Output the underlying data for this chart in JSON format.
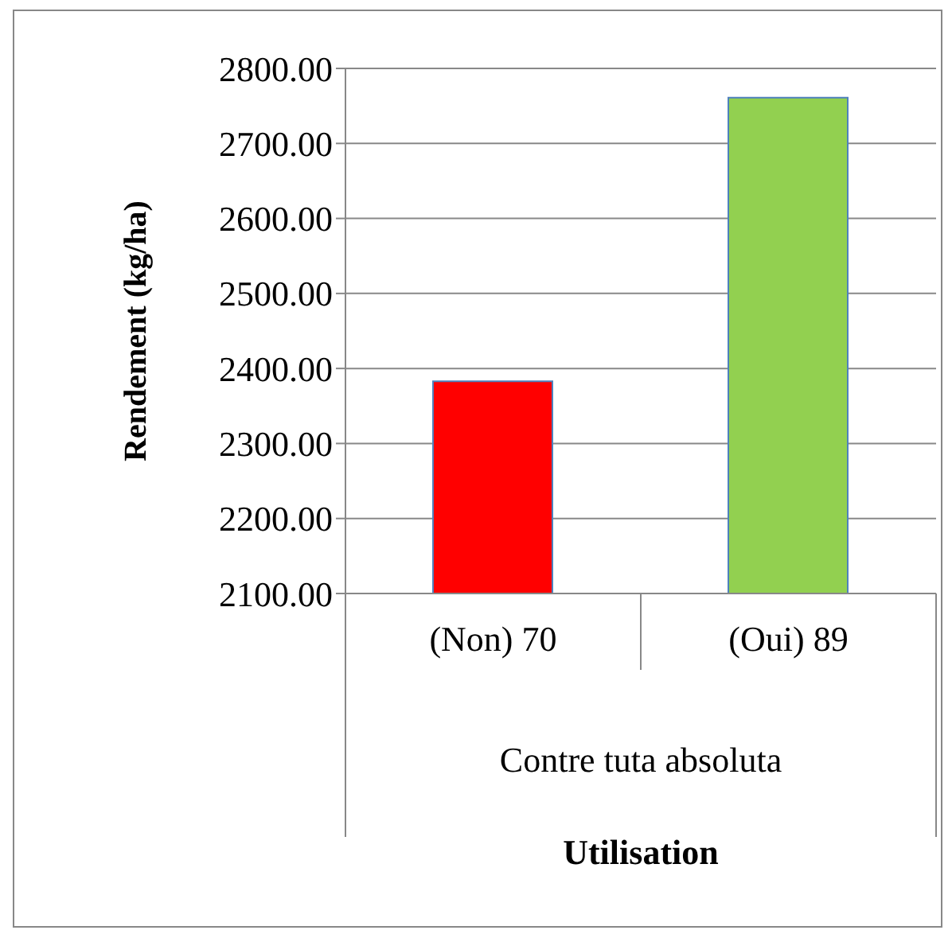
{
  "chart_data": {
    "type": "bar",
    "categories": [
      "(Non) 70",
      "(Oui) 89"
    ],
    "values": [
      2383,
      2761
    ],
    "colors": [
      "#ff0000",
      "#92d050"
    ],
    "ylim": [
      2100,
      2800
    ],
    "yticks": [
      {
        "value": 2100,
        "label": "2100.00"
      },
      {
        "value": 2200,
        "label": "2200.00"
      },
      {
        "value": 2300,
        "label": "2300.00"
      },
      {
        "value": 2400,
        "label": "2400.00"
      },
      {
        "value": 2500,
        "label": "2500.00"
      },
      {
        "value": 2600,
        "label": "2600.00"
      },
      {
        "value": 2700,
        "label": "2700.00"
      },
      {
        "value": 2800,
        "label": "2800.00"
      }
    ],
    "ylabel": "Rendement (kg/ha)",
    "xlabel": "Utilisation",
    "annotations": [
      "Contre tuta absoluta"
    ],
    "grid": "y",
    "legend": false
  }
}
